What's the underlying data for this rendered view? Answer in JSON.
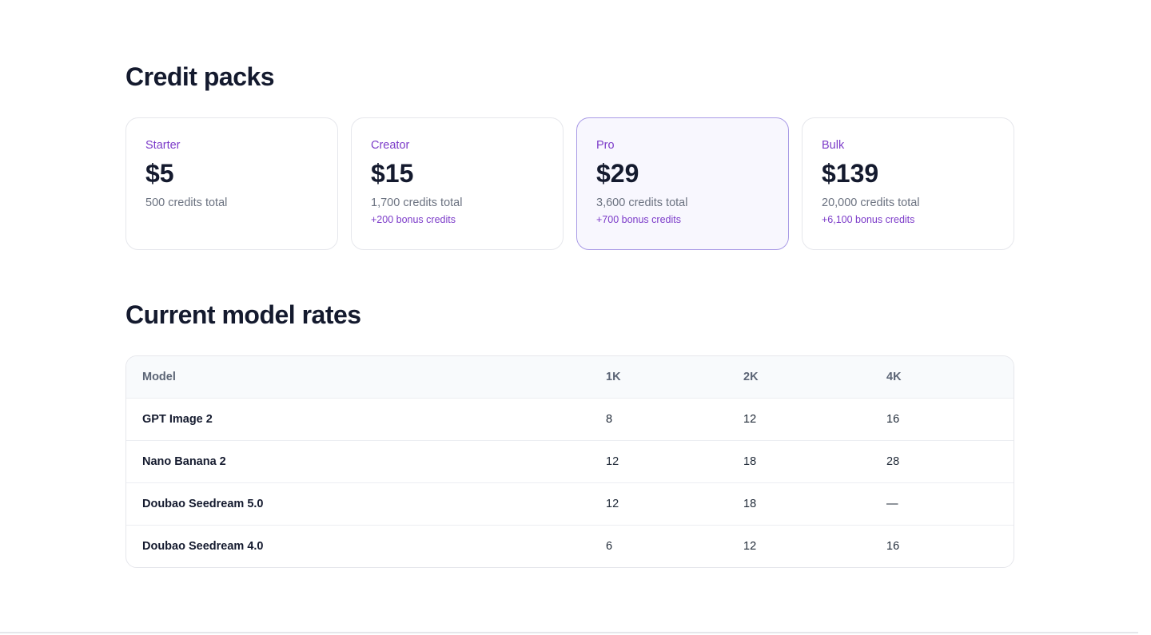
{
  "credit_packs": {
    "title": "Credit packs",
    "packs": [
      {
        "name": "Starter",
        "price": "$5",
        "credits": "500 credits total",
        "bonus": ""
      },
      {
        "name": "Creator",
        "price": "$15",
        "credits": "1,700 credits total",
        "bonus": "+200 bonus credits"
      },
      {
        "name": "Pro",
        "price": "$29",
        "credits": "3,600 credits total",
        "bonus": "+700 bonus credits"
      },
      {
        "name": "Bulk",
        "price": "$139",
        "credits": "20,000 credits total",
        "bonus": "+6,100 bonus credits"
      }
    ]
  },
  "model_rates": {
    "title": "Current model rates",
    "columns": [
      "Model",
      "1K",
      "2K",
      "4K"
    ],
    "rows": [
      {
        "model": "GPT Image 2",
        "r1k": "8",
        "r2k": "12",
        "r4k": "16"
      },
      {
        "model": "Nano Banana 2",
        "r1k": "12",
        "r2k": "18",
        "r4k": "28"
      },
      {
        "model": "Doubao Seedream 5.0",
        "r1k": "12",
        "r2k": "18",
        "r4k": "—"
      },
      {
        "model": "Doubao Seedream 4.0",
        "r1k": "6",
        "r2k": "12",
        "r4k": "16"
      }
    ]
  },
  "colors": {
    "accent": "#7c3bc9",
    "heading": "#141a2e",
    "featured_border": "#a99be6",
    "featured_bg": "#f8f7fe"
  }
}
